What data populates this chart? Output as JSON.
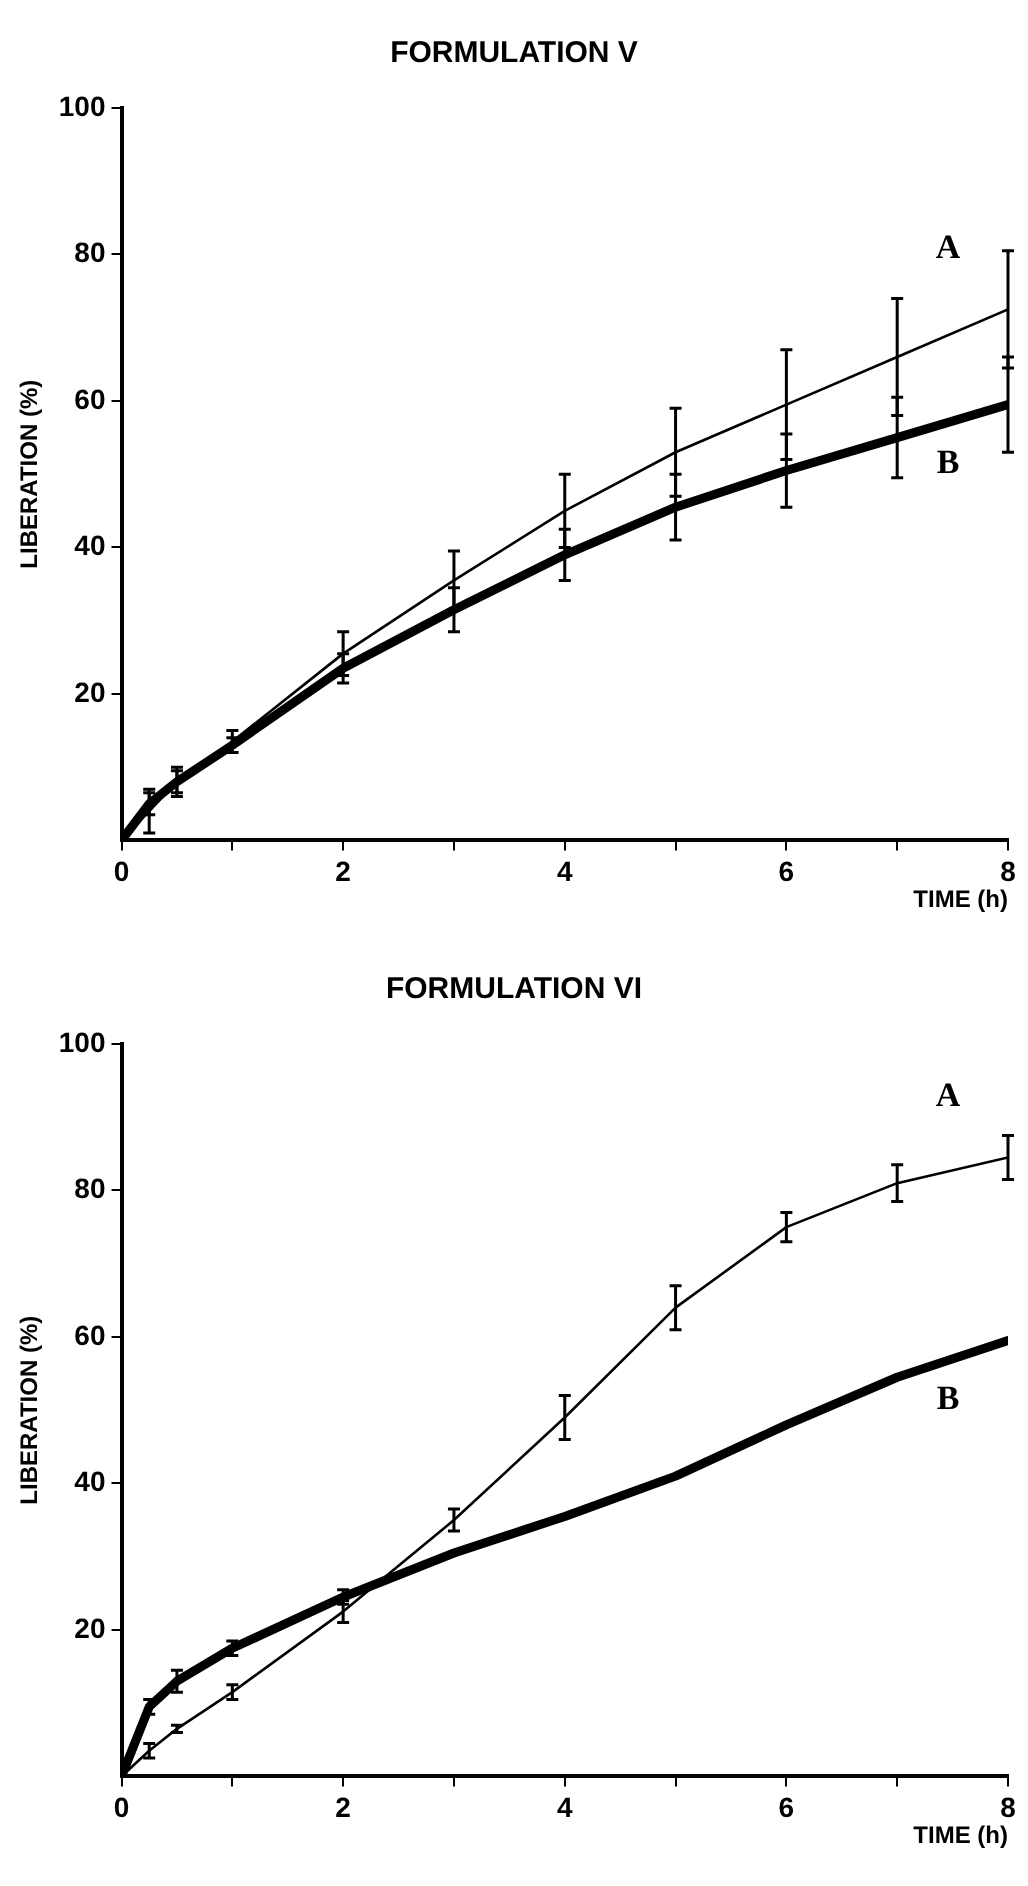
{
  "chart_data": [
    {
      "type": "line",
      "title": "FORMULATION V",
      "xlabel": "TIME (h)",
      "ylabel": "LIBERATION (%)",
      "x": [
        0,
        0.25,
        0.5,
        1,
        2,
        3,
        4,
        5,
        6,
        7,
        8
      ],
      "xlim": [
        0,
        8
      ],
      "ylim": [
        0,
        100
      ],
      "xticks": [
        0,
        {
          "value": 1,
          "label": null
        },
        2,
        {
          "value": 3,
          "label": null
        },
        4,
        {
          "value": 5,
          "label": null
        },
        6,
        {
          "value": 7,
          "label": null
        },
        8
      ],
      "yticks": [
        20,
        40,
        60,
        80,
        100
      ],
      "grid": false,
      "legend": false,
      "line_style": "solid",
      "series": [
        {
          "name": "A",
          "color": "#000000",
          "values": [
            0,
            4,
            8,
            13.5,
            25.5,
            35.5,
            45,
            53,
            59.5,
            66,
            72.5
          ],
          "errors": [
            null,
            3,
            2,
            1.5,
            3,
            4,
            5,
            6,
            7.5,
            8,
            8
          ]
        },
        {
          "name": "B",
          "color": "#000000",
          "values": [
            0,
            5,
            8,
            13,
            23.5,
            31.5,
            39,
            45.5,
            50.5,
            55,
            59.5
          ],
          "errors": [
            null,
            1.5,
            1.5,
            1,
            2,
            3,
            3.5,
            4.5,
            5,
            5.5,
            6.5
          ]
        }
      ]
    },
    {
      "type": "line",
      "title": "FORMULATION VI",
      "xlabel": "TIME (h)",
      "ylabel": "LIBERATION (%)",
      "x": [
        0,
        0.25,
        0.5,
        1,
        2,
        3,
        4,
        5,
        6,
        7,
        8
      ],
      "xlim": [
        0,
        8
      ],
      "ylim": [
        0,
        100
      ],
      "xticks": [
        0,
        {
          "value": 1,
          "label": null
        },
        2,
        {
          "value": 3,
          "label": null
        },
        4,
        {
          "value": 5,
          "label": null
        },
        6,
        {
          "value": 7,
          "label": null
        },
        8
      ],
      "yticks": [
        20,
        40,
        60,
        80,
        100
      ],
      "grid": false,
      "legend": false,
      "line_style": "solid",
      "series": [
        {
          "name": "A",
          "color": "#000000",
          "values": [
            0,
            3.5,
            6.5,
            11.5,
            22.5,
            35,
            49,
            64,
            75,
            81,
            84.5
          ],
          "errors": [
            null,
            1,
            0.5,
            1,
            1.5,
            1.5,
            3,
            3,
            2,
            2.5,
            3
          ]
        },
        {
          "name": "B",
          "color": "#000000",
          "values": [
            0,
            9.5,
            13,
            17.5,
            24.5,
            30.5,
            35.5,
            41,
            48,
            54.5,
            59.5
          ],
          "errors": [
            null,
            1,
            1.5,
            1,
            1,
            null,
            null,
            null,
            null,
            null,
            null
          ]
        }
      ]
    }
  ]
}
